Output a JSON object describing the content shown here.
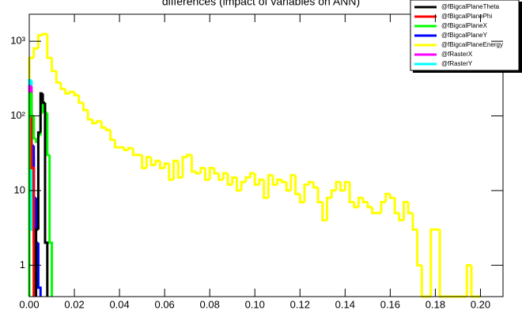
{
  "chart_data": {
    "type": "histogram",
    "title": "differences (impact of variables on ANN)",
    "log_y": true,
    "xlim": [
      0,
      0.21
    ],
    "ylim": [
      0.38,
      2300
    ],
    "xticks": [
      {
        "value": 0,
        "label": "0.00"
      },
      {
        "value": 0.02,
        "label": "0.02"
      },
      {
        "value": 0.04,
        "label": "0.04"
      },
      {
        "value": 0.06,
        "label": "0.06"
      },
      {
        "value": 0.08,
        "label": "0.08"
      },
      {
        "value": 0.1,
        "label": "0.10"
      },
      {
        "value": 0.12,
        "label": "0.12"
      },
      {
        "value": 0.14,
        "label": "0.14"
      },
      {
        "value": 0.16,
        "label": "0.16"
      },
      {
        "value": 0.18,
        "label": "0.18"
      },
      {
        "value": 0.2,
        "label": "0.20"
      }
    ],
    "yticks": [
      1,
      10,
      {
        "value": 100,
        "label": "10²"
      },
      {
        "value": 1000,
        "label": "10³"
      }
    ],
    "legend": "top-right",
    "series": [
      {
        "name": "@fBigcalPlaneTheta",
        "color": "#000000",
        "bins": [
          0.003,
          0.004,
          0.005,
          0.006,
          0.007,
          0.008
        ],
        "values": [
          3,
          60,
          200,
          150,
          2
        ]
      },
      {
        "name": "@fBigcalPlanePhi",
        "color": "#ff0000",
        "bins": [
          0,
          0.001,
          0.002
        ],
        "values": [
          200,
          20
        ]
      },
      {
        "name": "@fBigcalPlaneX",
        "color": "#00ff00",
        "bins": [
          0,
          0.001,
          0.002,
          0.003,
          0.004,
          0.005,
          0.006,
          0.007,
          0.008,
          0.009,
          0.01
        ],
        "values": [
          200,
          100,
          50,
          45,
          55,
          110,
          150,
          110,
          30,
          2
        ]
      },
      {
        "name": "@fBigcalPlaneY",
        "color": "#0000ff",
        "bins": [
          0,
          0.001,
          0.002,
          0.003,
          0.004,
          0.005
        ],
        "values": [
          150,
          40,
          8,
          2,
          0.5
        ]
      },
      {
        "name": "@fBigcalPlaneEnergy",
        "color": "#ffff00",
        "bins": [
          0,
          0.002,
          0.004,
          0.006,
          0.008,
          0.01,
          0.012,
          0.014,
          0.016,
          0.018,
          0.02,
          0.022,
          0.024,
          0.026,
          0.028,
          0.03,
          0.032,
          0.034,
          0.036,
          0.038,
          0.04,
          0.042,
          0.044,
          0.046,
          0.048,
          0.05,
          0.052,
          0.054,
          0.056,
          0.058,
          0.06,
          0.062,
          0.064,
          0.066,
          0.068,
          0.07,
          0.072,
          0.074,
          0.076,
          0.078,
          0.08,
          0.082,
          0.084,
          0.086,
          0.088,
          0.09,
          0.092,
          0.094,
          0.096,
          0.098,
          0.1,
          0.102,
          0.104,
          0.106,
          0.108,
          0.11,
          0.112,
          0.114,
          0.116,
          0.118,
          0.12,
          0.122,
          0.124,
          0.126,
          0.128,
          0.13,
          0.132,
          0.134,
          0.136,
          0.138,
          0.14,
          0.142,
          0.144,
          0.146,
          0.148,
          0.15,
          0.152,
          0.154,
          0.156,
          0.158,
          0.16,
          0.162,
          0.164,
          0.166,
          0.168,
          0.17,
          0.172,
          0.174,
          0.176,
          0.178,
          0.18,
          0.182,
          0.184,
          0.186,
          0.188,
          0.19,
          0.192,
          0.194,
          0.196,
          0.198,
          0.2
        ],
        "values": [
          600,
          800,
          1200,
          1250,
          600,
          400,
          280,
          230,
          200,
          210,
          190,
          150,
          120,
          90,
          80,
          85,
          70,
          65,
          48,
          38,
          38,
          35,
          37,
          30,
          30,
          20,
          28,
          22,
          25,
          20,
          23,
          14,
          25,
          15,
          28,
          30,
          18,
          17,
          20,
          14,
          20,
          17,
          14,
          17,
          12,
          15,
          10,
          13,
          15,
          17,
          12,
          14,
          8,
          16,
          12,
          14,
          13,
          10,
          16,
          9,
          7,
          12,
          13,
          11,
          7,
          4,
          8,
          10,
          13,
          10,
          13,
          7,
          6,
          8,
          7,
          6,
          5,
          5,
          7,
          9,
          8,
          5,
          4,
          7,
          5,
          3,
          1,
          0,
          0,
          3,
          3,
          0,
          0,
          0,
          0,
          0,
          0,
          1,
          0,
          0
        ]
      },
      {
        "name": "@fRasterX",
        "color": "#ff00ff",
        "bins": [
          0,
          0.001,
          0.002,
          0.003
        ],
        "values": [
          250,
          30,
          2
        ]
      },
      {
        "name": "@fRasterY",
        "color": "#00ffff",
        "bins": [
          0,
          0.001,
          0.002
        ],
        "values": [
          300,
          3
        ]
      }
    ]
  }
}
